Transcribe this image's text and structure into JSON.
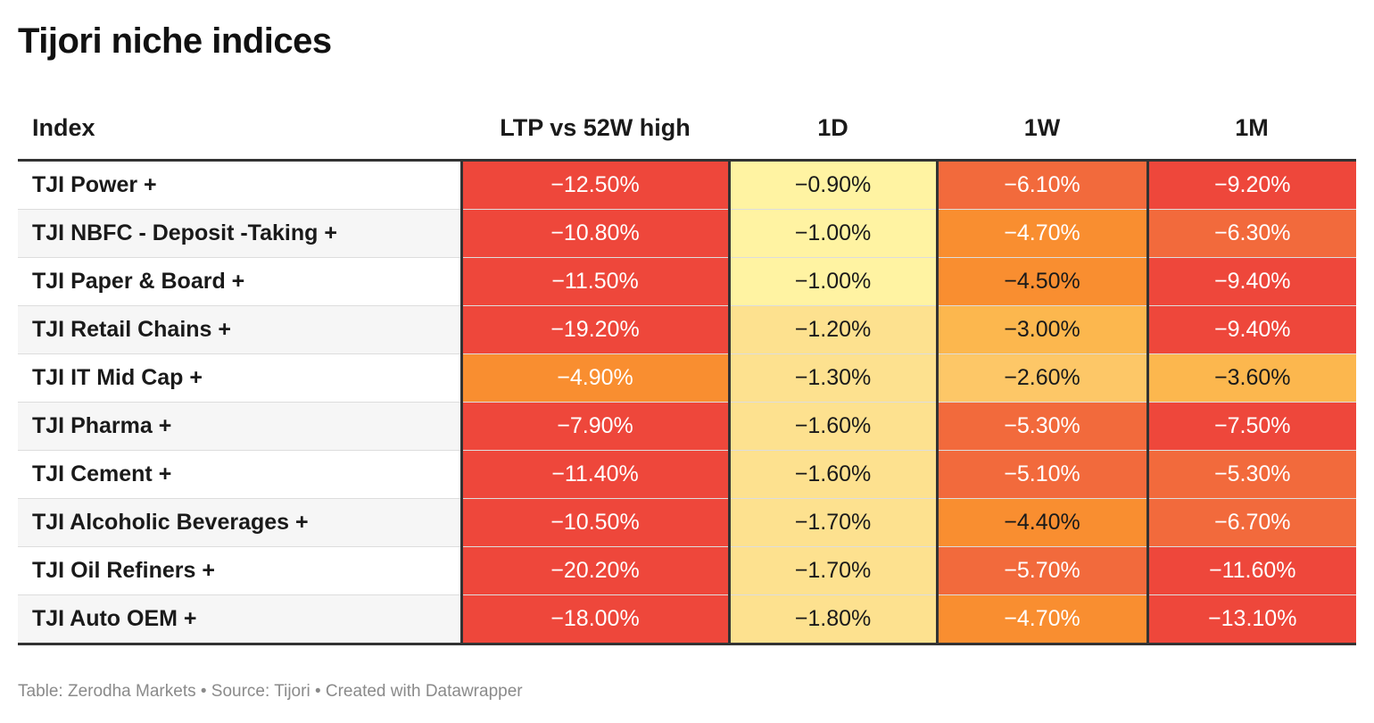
{
  "title": "Tijori niche indices",
  "footer": "Table: Zerodha Markets • Source: Tijori • Created with Datawrapper",
  "colors": {
    "red": "#ee473b",
    "red_orange": "#f26a3c",
    "orange": "#f98e30",
    "light_orange": "#fcb74e",
    "amber": "#fdc767",
    "light_yellow": "#fde18f",
    "pale_yellow": "#fff3a2",
    "text_light": "#ffffff",
    "text_dark": "#1a1a1a"
  },
  "chart_data": {
    "type": "table",
    "columns": [
      "Index",
      "LTP vs 52W high",
      "1D",
      "1W",
      "1M"
    ],
    "rows": [
      {
        "index": "TJI Power +",
        "values": [
          "−12.50%",
          "−0.90%",
          "−6.10%",
          "−9.20%"
        ],
        "bg": [
          "red",
          "pale_yellow",
          "red_orange",
          "red"
        ],
        "fg": [
          "text_light",
          "text_dark",
          "text_light",
          "text_light"
        ]
      },
      {
        "index": "TJI NBFC - Deposit -Taking +",
        "values": [
          "−10.80%",
          "−1.00%",
          "−4.70%",
          "−6.30%"
        ],
        "bg": [
          "red",
          "pale_yellow",
          "orange",
          "red_orange"
        ],
        "fg": [
          "text_light",
          "text_dark",
          "text_light",
          "text_light"
        ]
      },
      {
        "index": "TJI Paper & Board +",
        "values": [
          "−11.50%",
          "−1.00%",
          "−4.50%",
          "−9.40%"
        ],
        "bg": [
          "red",
          "pale_yellow",
          "orange",
          "red"
        ],
        "fg": [
          "text_light",
          "text_dark",
          "text_dark",
          "text_light"
        ]
      },
      {
        "index": "TJI Retail Chains +",
        "values": [
          "−19.20%",
          "−1.20%",
          "−3.00%",
          "−9.40%"
        ],
        "bg": [
          "red",
          "light_yellow",
          "light_orange",
          "red"
        ],
        "fg": [
          "text_light",
          "text_dark",
          "text_dark",
          "text_light"
        ]
      },
      {
        "index": "TJI IT Mid Cap +",
        "values": [
          "−4.90%",
          "−1.30%",
          "−2.60%",
          "−3.60%"
        ],
        "bg": [
          "orange",
          "light_yellow",
          "amber",
          "light_orange"
        ],
        "fg": [
          "text_light",
          "text_dark",
          "text_dark",
          "text_dark"
        ]
      },
      {
        "index": "TJI Pharma +",
        "values": [
          "−7.90%",
          "−1.60%",
          "−5.30%",
          "−7.50%"
        ],
        "bg": [
          "red",
          "light_yellow",
          "red_orange",
          "red"
        ],
        "fg": [
          "text_light",
          "text_dark",
          "text_light",
          "text_light"
        ]
      },
      {
        "index": "TJI Cement +",
        "values": [
          "−11.40%",
          "−1.60%",
          "−5.10%",
          "−5.30%"
        ],
        "bg": [
          "red",
          "light_yellow",
          "red_orange",
          "red_orange"
        ],
        "fg": [
          "text_light",
          "text_dark",
          "text_light",
          "text_light"
        ]
      },
      {
        "index": "TJI Alcoholic Beverages +",
        "values": [
          "−10.50%",
          "−1.70%",
          "−4.40%",
          "−6.70%"
        ],
        "bg": [
          "red",
          "light_yellow",
          "orange",
          "red_orange"
        ],
        "fg": [
          "text_light",
          "text_dark",
          "text_dark",
          "text_light"
        ]
      },
      {
        "index": "TJI Oil Refiners +",
        "values": [
          "−20.20%",
          "−1.70%",
          "−5.70%",
          "−11.60%"
        ],
        "bg": [
          "red",
          "light_yellow",
          "red_orange",
          "red"
        ],
        "fg": [
          "text_light",
          "text_dark",
          "text_light",
          "text_light"
        ]
      },
      {
        "index": "TJI Auto OEM +",
        "values": [
          "−18.00%",
          "−1.80%",
          "−4.70%",
          "−13.10%"
        ],
        "bg": [
          "red",
          "light_yellow",
          "orange",
          "red"
        ],
        "fg": [
          "text_light",
          "text_dark",
          "text_light",
          "text_light"
        ]
      }
    ]
  }
}
